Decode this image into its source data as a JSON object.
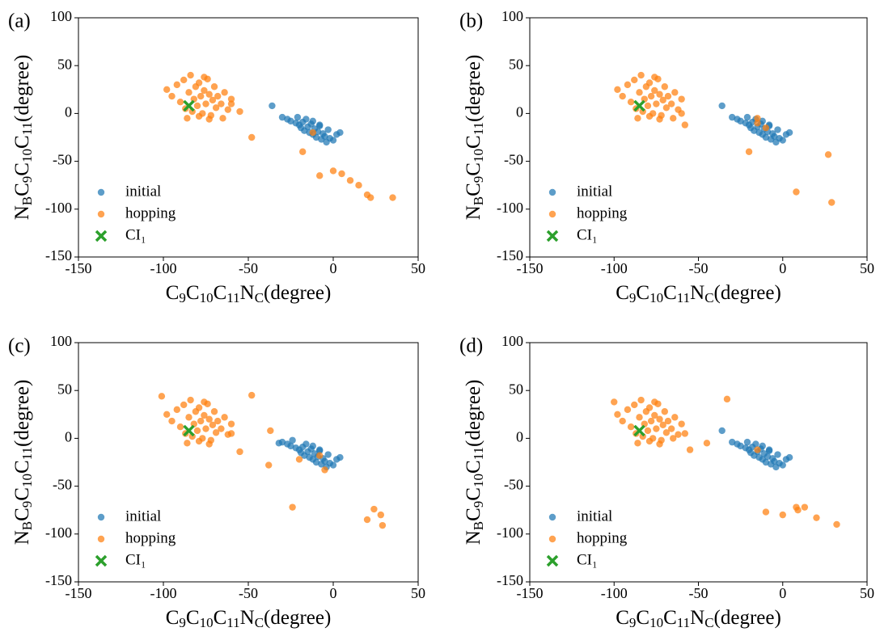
{
  "chart_data": [
    {
      "type": "scatter",
      "panel_label": "(a)",
      "xlabel_parts": [
        "C",
        "9",
        "C",
        "10",
        "C",
        "11",
        "N",
        "C",
        "(degree)"
      ],
      "ylabel_parts": [
        "N",
        "B",
        "C",
        "9",
        "C",
        "10",
        "C",
        "11",
        "(degree)"
      ],
      "xlim": [
        -150,
        50
      ],
      "ylim": [
        -150,
        100
      ],
      "xticks": [
        -150,
        -100,
        -50,
        0,
        50
      ],
      "yticks": [
        -150,
        -100,
        -50,
        0,
        50,
        100
      ],
      "legend": "lower left",
      "series": [
        {
          "name": "initial",
          "color": "#1f77b4",
          "marker": "o",
          "x": [
            -36,
            -30,
            -27,
            -25,
            -22,
            -20,
            -19,
            -18,
            -17,
            -15,
            -14,
            -13,
            -12,
            -11,
            -10,
            -9,
            -8,
            -7,
            -6,
            -5,
            -4,
            -3,
            -2,
            0,
            2,
            4,
            -16,
            -12,
            -8,
            -21
          ],
          "y": [
            8,
            -4,
            -6,
            -8,
            -10,
            -12,
            -15,
            -9,
            -18,
            -14,
            -20,
            -11,
            -22,
            -16,
            -25,
            -19,
            -13,
            -27,
            -21,
            -24,
            -30,
            -17,
            -26,
            -28,
            -22,
            -20,
            -6,
            -8,
            -12,
            -4
          ]
        },
        {
          "name": "hopping",
          "color": "#ff7f0e",
          "marker": "o",
          "x": [
            -98,
            -95,
            -92,
            -90,
            -88,
            -87,
            -85,
            -84,
            -82,
            -81,
            -80,
            -79,
            -78,
            -77,
            -76,
            -75,
            -74,
            -73,
            -72,
            -71,
            -70,
            -69,
            -68,
            -66,
            -64,
            -62,
            -60,
            -86,
            -83,
            -79,
            -76,
            -73,
            -55,
            -48,
            -18,
            -12,
            0,
            5,
            10,
            15,
            20,
            22,
            35,
            -60,
            -65,
            -8
          ],
          "y": [
            25,
            18,
            30,
            12,
            35,
            5,
            22,
            40,
            15,
            28,
            8,
            32,
            18,
            0,
            24,
            10,
            36,
            20,
            -2,
            14,
            28,
            6,
            18,
            10,
            22,
            4,
            15,
            -5,
            2,
            -3,
            38,
            -6,
            2,
            -25,
            -40,
            -20,
            -60,
            -63,
            -70,
            -75,
            -85,
            -88,
            -88,
            10,
            -5,
            -65
          ]
        },
        {
          "name": "CI₁",
          "color": "#2ca02c",
          "marker": "x",
          "x": [
            -85
          ],
          "y": [
            8
          ]
        }
      ]
    },
    {
      "type": "scatter",
      "panel_label": "(b)",
      "xlabel_parts": [
        "C",
        "9",
        "C",
        "10",
        "C",
        "11",
        "N",
        "C",
        "(degree)"
      ],
      "ylabel_parts": [
        "N",
        "B",
        "C",
        "9",
        "C",
        "10",
        "C",
        "11",
        "(degree)"
      ],
      "xlim": [
        -150,
        50
      ],
      "ylim": [
        -150,
        100
      ],
      "xticks": [
        -150,
        -100,
        -50,
        0,
        50
      ],
      "yticks": [
        -150,
        -100,
        -50,
        0,
        50,
        100
      ],
      "legend": "lower left",
      "series": [
        {
          "name": "initial",
          "color": "#1f77b4",
          "marker": "o",
          "x": [
            -36,
            -30,
            -27,
            -25,
            -22,
            -20,
            -19,
            -18,
            -17,
            -15,
            -14,
            -13,
            -12,
            -11,
            -10,
            -9,
            -8,
            -7,
            -6,
            -5,
            -4,
            -3,
            -2,
            0,
            2,
            4,
            -16,
            -12,
            -8,
            -21
          ],
          "y": [
            8,
            -4,
            -6,
            -8,
            -10,
            -12,
            -15,
            -9,
            -18,
            -14,
            -20,
            -11,
            -22,
            -16,
            -25,
            -19,
            -13,
            -27,
            -21,
            -24,
            -30,
            -17,
            -26,
            -28,
            -22,
            -20,
            -6,
            -8,
            -12,
            -4
          ]
        },
        {
          "name": "hopping",
          "color": "#ff7f0e",
          "marker": "o",
          "x": [
            -98,
            -95,
            -92,
            -90,
            -88,
            -87,
            -85,
            -84,
            -82,
            -81,
            -80,
            -79,
            -78,
            -77,
            -76,
            -75,
            -74,
            -73,
            -72,
            -71,
            -70,
            -69,
            -68,
            -66,
            -64,
            -62,
            -60,
            -86,
            -83,
            -79,
            -76,
            -73,
            -58,
            -65,
            -20,
            -10,
            -15,
            8,
            27,
            29,
            -15,
            -60
          ],
          "y": [
            25,
            18,
            30,
            12,
            35,
            5,
            22,
            40,
            15,
            28,
            8,
            32,
            18,
            0,
            24,
            10,
            36,
            20,
            -2,
            14,
            28,
            6,
            18,
            10,
            22,
            4,
            15,
            -5,
            2,
            -3,
            38,
            -6,
            -12,
            -5,
            -40,
            -15,
            -10,
            -82,
            -43,
            -93,
            -5,
            0
          ]
        },
        {
          "name": "CI₁",
          "color": "#2ca02c",
          "marker": "x",
          "x": [
            -85
          ],
          "y": [
            8
          ]
        }
      ]
    },
    {
      "type": "scatter",
      "panel_label": "(c)",
      "xlabel_parts": [
        "C",
        "9",
        "C",
        "10",
        "C",
        "11",
        "N",
        "C",
        "(degree)"
      ],
      "ylabel_parts": [
        "N",
        "B",
        "C",
        "9",
        "C",
        "10",
        "C",
        "11",
        "(degree)"
      ],
      "xlim": [
        -150,
        50
      ],
      "ylim": [
        -150,
        100
      ],
      "xticks": [
        -150,
        -100,
        -50,
        0,
        50
      ],
      "yticks": [
        -150,
        -100,
        -50,
        0,
        50,
        100
      ],
      "legend": "lower left",
      "series": [
        {
          "name": "initial",
          "color": "#1f77b4",
          "marker": "o",
          "x": [
            -32,
            -30,
            -27,
            -25,
            -22,
            -20,
            -19,
            -18,
            -17,
            -15,
            -14,
            -13,
            -12,
            -11,
            -10,
            -9,
            -8,
            -7,
            -6,
            -5,
            -4,
            -3,
            -2,
            0,
            2,
            4,
            -16,
            -12,
            -8,
            -24
          ],
          "y": [
            -5,
            -4,
            -6,
            -8,
            -10,
            -12,
            -15,
            -9,
            -18,
            -14,
            -20,
            -11,
            -22,
            -16,
            -25,
            -19,
            -13,
            -27,
            -21,
            -24,
            -30,
            -17,
            -26,
            -28,
            -22,
            -20,
            -6,
            -8,
            -12,
            -2
          ]
        },
        {
          "name": "hopping",
          "color": "#ff7f0e",
          "marker": "o",
          "x": [
            -98,
            -95,
            -92,
            -90,
            -88,
            -87,
            -85,
            -84,
            -82,
            -81,
            -80,
            -79,
            -78,
            -77,
            -76,
            -75,
            -74,
            -73,
            -72,
            -71,
            -70,
            -69,
            -68,
            -66,
            -64,
            -62,
            -60,
            -86,
            -83,
            -79,
            -76,
            -73,
            -101,
            -48,
            -37,
            -55,
            -38,
            -24,
            -20,
            -8,
            -5,
            20,
            24,
            28,
            29,
            -60
          ],
          "y": [
            25,
            18,
            30,
            12,
            35,
            5,
            22,
            40,
            15,
            28,
            8,
            32,
            18,
            0,
            24,
            10,
            36,
            20,
            -2,
            14,
            28,
            6,
            18,
            10,
            22,
            4,
            15,
            -5,
            2,
            -3,
            38,
            -6,
            44,
            45,
            8,
            -14,
            -28,
            -72,
            -22,
            -18,
            -33,
            -85,
            -74,
            -80,
            -91,
            5
          ]
        },
        {
          "name": "CI₁",
          "color": "#2ca02c",
          "marker": "x",
          "x": [
            -85
          ],
          "y": [
            8
          ]
        }
      ]
    },
    {
      "type": "scatter",
      "panel_label": "(d)",
      "xlabel_parts": [
        "C",
        "9",
        "C",
        "10",
        "C",
        "11",
        "N",
        "C",
        "(degree)"
      ],
      "ylabel_parts": [
        "N",
        "B",
        "C",
        "9",
        "C",
        "10",
        "C",
        "11",
        "(degree)"
      ],
      "xlim": [
        -150,
        50
      ],
      "ylim": [
        -150,
        100
      ],
      "xticks": [
        -150,
        -100,
        -50,
        0,
        50
      ],
      "yticks": [
        -150,
        -100,
        -50,
        0,
        50,
        100
      ],
      "legend": "lower left",
      "series": [
        {
          "name": "initial",
          "color": "#1f77b4",
          "marker": "o",
          "x": [
            -36,
            -30,
            -27,
            -25,
            -22,
            -20,
            -19,
            -18,
            -17,
            -15,
            -14,
            -13,
            -12,
            -11,
            -10,
            -9,
            -8,
            -7,
            -6,
            -5,
            -4,
            -3,
            -2,
            0,
            2,
            4,
            -16,
            -12,
            -8,
            -21
          ],
          "y": [
            8,
            -4,
            -6,
            -8,
            -10,
            -12,
            -15,
            -9,
            -18,
            -14,
            -20,
            -11,
            -22,
            -16,
            -25,
            -19,
            -13,
            -27,
            -21,
            -24,
            -30,
            -17,
            -26,
            -28,
            -22,
            -20,
            -6,
            -8,
            -12,
            -4
          ]
        },
        {
          "name": "hopping",
          "color": "#ff7f0e",
          "marker": "o",
          "x": [
            -98,
            -95,
            -92,
            -90,
            -88,
            -87,
            -85,
            -84,
            -82,
            -81,
            -80,
            -79,
            -78,
            -77,
            -76,
            -75,
            -74,
            -73,
            -72,
            -71,
            -70,
            -69,
            -68,
            -66,
            -64,
            -62,
            -60,
            -86,
            -83,
            -79,
            -76,
            -73,
            -100,
            -33,
            -45,
            -55,
            -15,
            -10,
            0,
            8,
            9,
            13,
            20,
            32,
            -58,
            -65
          ],
          "y": [
            25,
            18,
            30,
            12,
            35,
            5,
            22,
            40,
            15,
            28,
            8,
            32,
            18,
            0,
            24,
            10,
            36,
            20,
            -2,
            14,
            28,
            6,
            18,
            10,
            22,
            4,
            15,
            -5,
            2,
            -3,
            38,
            -6,
            38,
            41,
            -5,
            -12,
            -12,
            -77,
            -80,
            -72,
            -75,
            -72,
            -83,
            -90,
            5,
            0
          ]
        },
        {
          "name": "CI₁",
          "color": "#2ca02c",
          "marker": "x",
          "x": [
            -85
          ],
          "y": [
            8
          ]
        }
      ]
    }
  ]
}
